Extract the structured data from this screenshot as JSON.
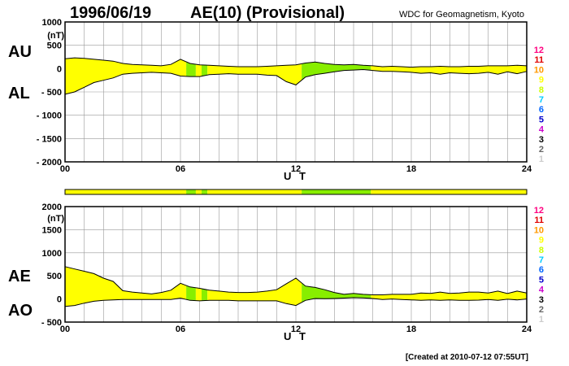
{
  "header": {
    "date": "1996/06/19",
    "index_title": "AE(10) (Provisional)",
    "source": "WDC for Geomagnetism, Kyoto"
  },
  "footer": {
    "created": "[Created at 2010-07-12 07:55UT]"
  },
  "level_legend": {
    "labels": [
      "12",
      "11",
      "10",
      "9",
      "8",
      "7",
      "6",
      "5",
      "4",
      "3",
      "2",
      "1"
    ],
    "colors": [
      "#ff0080",
      "#e00000",
      "#ff9900",
      "#ffff00",
      "#ccff00",
      "#00ccff",
      "#0066ff",
      "#0000cc",
      "#cc00cc",
      "#000000",
      "#666666",
      "#cccccc"
    ]
  },
  "colors": {
    "station_yellow": "#ffff00",
    "station_green": "#88ee00",
    "frame": "#000000",
    "grid": "#999999"
  },
  "chart_data": [
    {
      "type": "area",
      "panel": "AU/AL",
      "series_labels": [
        "AU",
        "AL"
      ],
      "unit": "(nT)",
      "xlabel": "U T",
      "x_ticks": [
        0,
        6,
        12,
        18,
        24
      ],
      "x_tick_labels": [
        "00",
        "06",
        "12",
        "18",
        "24"
      ],
      "xlim": [
        0,
        24
      ],
      "ylim": [
        -2000,
        1000
      ],
      "y_ticks": [
        1000,
        500,
        0,
        -500,
        -1000,
        -1500,
        -2000
      ],
      "y_tick_labels": [
        "1000",
        "500",
        "0",
        "- 500",
        "- 1000",
        "- 1500",
        "- 2000"
      ],
      "x": [
        0,
        0.5,
        1,
        1.5,
        2,
        2.5,
        3,
        3.5,
        4,
        4.5,
        5,
        5.5,
        6,
        6.5,
        7,
        7.5,
        8,
        8.5,
        9,
        9.5,
        10,
        10.5,
        11,
        11.5,
        12,
        12.5,
        13,
        13.5,
        14,
        14.5,
        15,
        15.5,
        16,
        16.5,
        17,
        17.5,
        18,
        18.5,
        19,
        19.5,
        20,
        20.5,
        21,
        21.5,
        22,
        22.5,
        23,
        23.5,
        24
      ],
      "au": [
        210,
        230,
        220,
        200,
        180,
        160,
        110,
        90,
        80,
        70,
        60,
        90,
        200,
        110,
        80,
        70,
        60,
        50,
        40,
        40,
        40,
        50,
        60,
        70,
        80,
        120,
        140,
        110,
        90,
        80,
        90,
        70,
        60,
        40,
        50,
        40,
        30,
        40,
        40,
        50,
        40,
        40,
        50,
        50,
        60,
        60,
        60,
        70,
        60
      ],
      "al": [
        -550,
        -500,
        -400,
        -300,
        -250,
        -200,
        -120,
        -100,
        -90,
        -80,
        -90,
        -100,
        -160,
        -170,
        -170,
        -130,
        -120,
        -110,
        -120,
        -120,
        -120,
        -140,
        -150,
        -280,
        -350,
        -180,
        -130,
        -100,
        -70,
        -40,
        -30,
        -20,
        -40,
        -60,
        -60,
        -70,
        -80,
        -100,
        -90,
        -120,
        -90,
        -100,
        -110,
        -100,
        -80,
        -120,
        -70,
        -110,
        -60
      ]
    },
    {
      "type": "area",
      "panel": "AE/AO",
      "series_labels": [
        "AE",
        "AO"
      ],
      "unit": "(nT)",
      "xlabel": "U T",
      "x_ticks": [
        0,
        6,
        12,
        18,
        24
      ],
      "x_tick_labels": [
        "00",
        "06",
        "12",
        "18",
        "24"
      ],
      "xlim": [
        0,
        24
      ],
      "ylim": [
        -500,
        2000
      ],
      "y_ticks": [
        2000,
        1500,
        1000,
        500,
        0,
        -500
      ],
      "y_tick_labels": [
        "2000",
        "1500",
        "1000",
        "500",
        "0",
        "- 500"
      ],
      "x": [
        0,
        0.5,
        1,
        1.5,
        2,
        2.5,
        3,
        3.5,
        4,
        4.5,
        5,
        5.5,
        6,
        6.5,
        7,
        7.5,
        8,
        8.5,
        9,
        9.5,
        10,
        10.5,
        11,
        11.5,
        12,
        12.5,
        13,
        13.5,
        14,
        14.5,
        15,
        15.5,
        16,
        16.5,
        17,
        17.5,
        18,
        18.5,
        19,
        19.5,
        20,
        20.5,
        21,
        21.5,
        22,
        22.5,
        23,
        23.5,
        24
      ],
      "ae": [
        700,
        650,
        600,
        550,
        450,
        380,
        180,
        150,
        130,
        110,
        140,
        190,
        340,
        260,
        230,
        190,
        170,
        150,
        140,
        140,
        150,
        170,
        200,
        330,
        450,
        280,
        250,
        200,
        140,
        100,
        120,
        100,
        90,
        90,
        100,
        100,
        100,
        130,
        120,
        150,
        120,
        130,
        150,
        150,
        130,
        170,
        120,
        170,
        130
      ],
      "ao": [
        -160,
        -140,
        -90,
        -50,
        -30,
        -20,
        -10,
        -10,
        -10,
        -10,
        -10,
        -10,
        20,
        -30,
        -40,
        -30,
        -30,
        -30,
        -40,
        -40,
        -40,
        -40,
        -40,
        -100,
        -140,
        -30,
        10,
        5,
        10,
        20,
        30,
        25,
        10,
        -10,
        0,
        -10,
        -20,
        -30,
        -20,
        -30,
        -20,
        -30,
        -30,
        -25,
        -10,
        -30,
        -5,
        -20,
        0
      ]
    }
  ],
  "station_coverage": {
    "note": "color bar and fill segments: green = fewer stations",
    "segments": [
      {
        "from": 0,
        "to": 6.3,
        "color": "station_yellow"
      },
      {
        "from": 6.3,
        "to": 6.8,
        "color": "station_green"
      },
      {
        "from": 6.8,
        "to": 7.1,
        "color": "station_yellow"
      },
      {
        "from": 7.1,
        "to": 7.4,
        "color": "station_green"
      },
      {
        "from": 7.4,
        "to": 12.3,
        "color": "station_yellow"
      },
      {
        "from": 12.3,
        "to": 15.9,
        "color": "station_green"
      },
      {
        "from": 15.9,
        "to": 24,
        "color": "station_yellow"
      }
    ]
  }
}
